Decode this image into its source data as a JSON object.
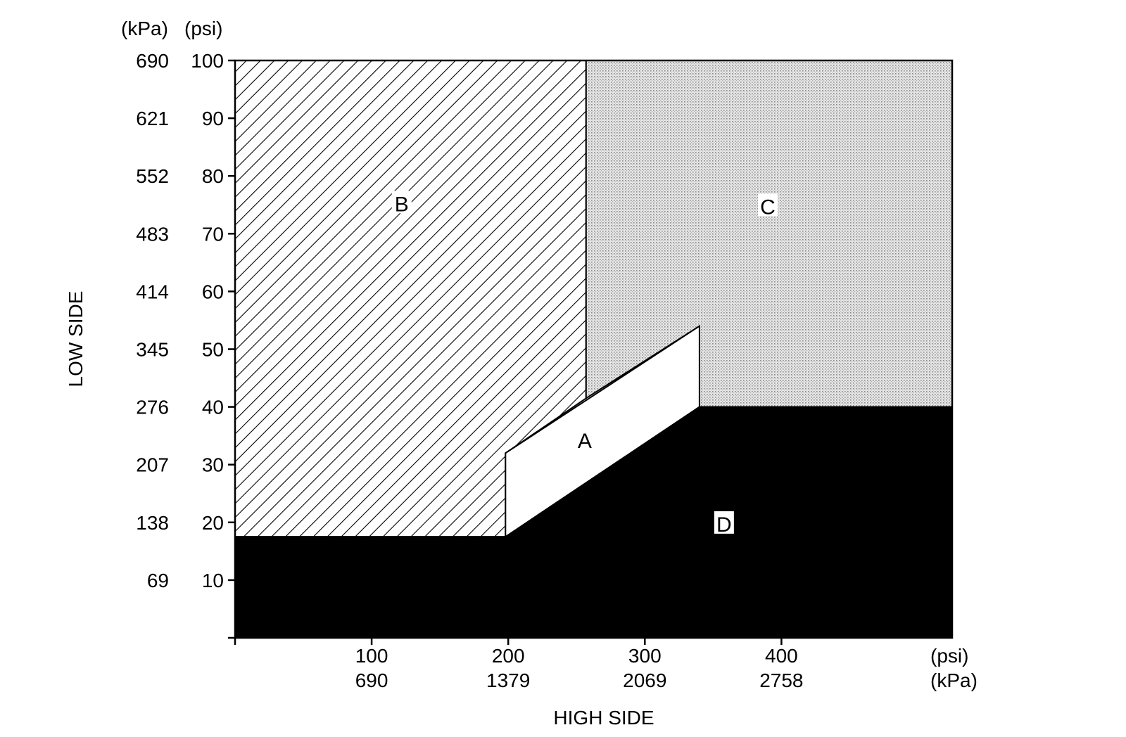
{
  "chart_data": {
    "type": "area",
    "title": "",
    "xlabel": "HIGH SIDE",
    "ylabel": "LOW SIDE",
    "x_unit_labels": [
      "(psi)",
      "(kPa)"
    ],
    "y_unit_labels": [
      "(kPa)",
      "(psi)"
    ],
    "xlim": [
      0,
      525
    ],
    "ylim": [
      0,
      100
    ],
    "x_ticks": [
      {
        "psi": 100,
        "psi_label": "100",
        "kpa_label": "690"
      },
      {
        "psi": 200,
        "psi_label": "200",
        "kpa_label": "1379"
      },
      {
        "psi": 300,
        "psi_label": "300",
        "kpa_label": "2069"
      },
      {
        "psi": 400,
        "psi_label": "400",
        "kpa_label": "2758"
      }
    ],
    "y_ticks": [
      {
        "psi": 10,
        "psi_label": "10",
        "kpa_label": "69"
      },
      {
        "psi": 20,
        "psi_label": "20",
        "kpa_label": "138"
      },
      {
        "psi": 30,
        "psi_label": "30",
        "kpa_label": "207"
      },
      {
        "psi": 40,
        "psi_label": "40",
        "kpa_label": "276"
      },
      {
        "psi": 50,
        "psi_label": "50",
        "kpa_label": "345"
      },
      {
        "psi": 60,
        "psi_label": "60",
        "kpa_label": "414"
      },
      {
        "psi": 70,
        "psi_label": "70",
        "kpa_label": "483"
      },
      {
        "psi": 80,
        "psi_label": "80",
        "kpa_label": "552"
      },
      {
        "psi": 90,
        "psi_label": "90",
        "kpa_label": "621"
      },
      {
        "psi": 100,
        "psi_label": "100",
        "kpa_label": "690"
      }
    ],
    "regions": [
      {
        "label": "B",
        "fill": "hatch",
        "label_at": [
          122,
          75
        ],
        "polygon": [
          [
            0,
            100
          ],
          [
            257,
            100
          ],
          [
            257,
            41.5
          ],
          [
            198,
            32
          ],
          [
            198,
            17.5
          ],
          [
            0,
            17.5
          ]
        ]
      },
      {
        "label": "C",
        "fill": "dots",
        "label_at": [
          390,
          74.5
        ],
        "polygon": [
          [
            257,
            100
          ],
          [
            525,
            100
          ],
          [
            525,
            40
          ],
          [
            340,
            40
          ],
          [
            340,
            54
          ],
          [
            257,
            41.5
          ]
        ]
      },
      {
        "label": "A",
        "fill": "white",
        "label_at": [
          256,
          34
        ],
        "polygon": [
          [
            198,
            17.5
          ],
          [
            198,
            32
          ],
          [
            340,
            54
          ],
          [
            340,
            40
          ]
        ]
      },
      {
        "label": "D",
        "fill": "black",
        "label_at": [
          358,
          19.5
        ],
        "polygon": [
          [
            0,
            0
          ],
          [
            525,
            0
          ],
          [
            525,
            40
          ],
          [
            340,
            40
          ],
          [
            198,
            17.5
          ],
          [
            0,
            17.5
          ]
        ]
      }
    ],
    "grid": false,
    "legend": "none"
  }
}
